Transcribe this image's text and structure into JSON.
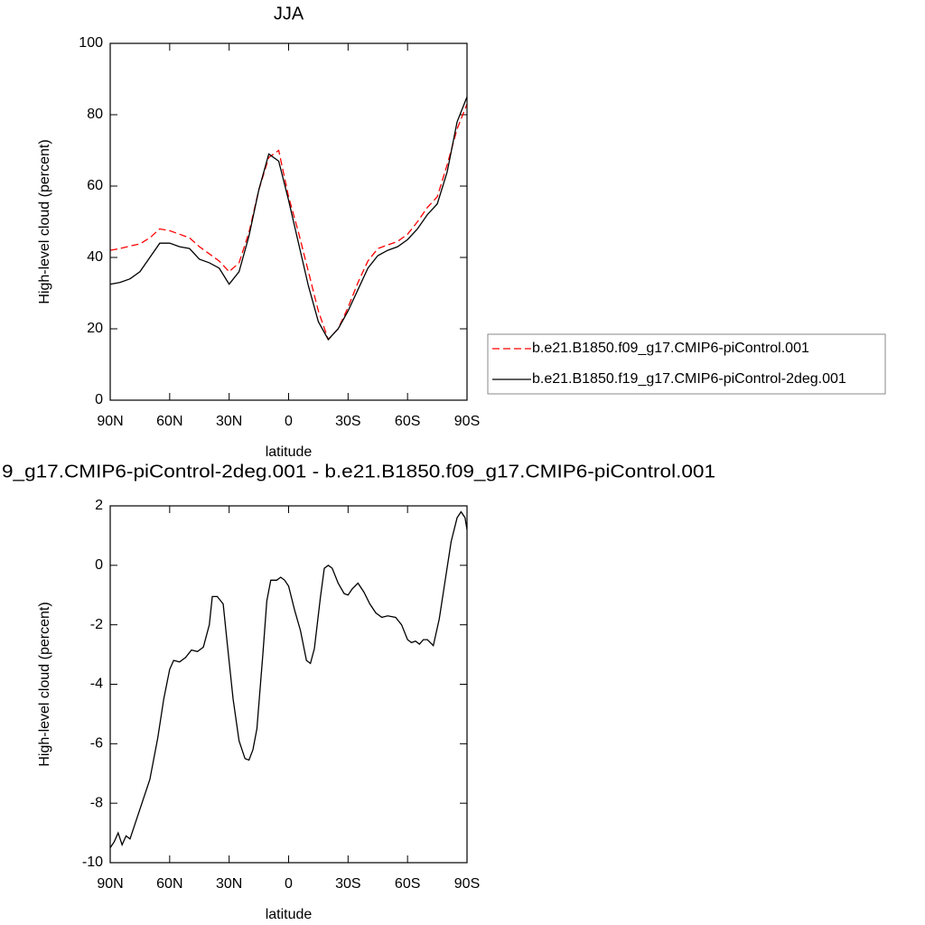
{
  "chart_data": [
    {
      "type": "line",
      "title": "JJA",
      "xlabel": "latitude",
      "ylabel": "High-level cloud (percent)",
      "xlim": [
        90,
        -90
      ],
      "xticks": [
        {
          "value": 90,
          "label": "90N"
        },
        {
          "value": 60,
          "label": "60N"
        },
        {
          "value": 30,
          "label": "30N"
        },
        0,
        {
          "value": -30,
          "label": "30S"
        },
        {
          "value": -60,
          "label": "60S"
        },
        {
          "value": -90,
          "label": "90S"
        }
      ],
      "ylim": [
        0,
        100
      ],
      "yticks": [
        0,
        20,
        40,
        60,
        80,
        100
      ],
      "legend": "right",
      "x": [
        90,
        85,
        80,
        75,
        70,
        65,
        60,
        55,
        50,
        45,
        40,
        35,
        30,
        25,
        20,
        15,
        10,
        5,
        0,
        -5,
        -10,
        -15,
        -20,
        -25,
        -30,
        -35,
        -40,
        -45,
        -50,
        -55,
        -60,
        -65,
        -70,
        -75,
        -80,
        -85,
        -90
      ],
      "series": [
        {
          "name": "b.e21.B1850.f09_g17.CMIP6-piControl.001",
          "color": "#ff0000",
          "line_style": "dashed",
          "values": [
            42,
            42.5,
            43.2,
            43.8,
            45.5,
            48,
            47.5,
            46.5,
            45.5,
            43,
            41,
            39,
            36,
            38.5,
            47,
            59,
            68,
            70,
            57,
            47,
            36,
            25,
            17,
            20,
            26,
            33,
            39,
            42.5,
            43.5,
            44.5,
            46.5,
            50,
            54,
            57,
            66,
            76,
            83
          ]
        },
        {
          "name": "b.e21.B1850.f19_g17.CMIP6-piControl-2deg.001",
          "color": "#000000",
          "line_style": "solid",
          "values": [
            32.5,
            33,
            34,
            36,
            40,
            44,
            44,
            43,
            42.5,
            39.5,
            38.5,
            37,
            32.5,
            36,
            46,
            59,
            69,
            67,
            56,
            44,
            32,
            22,
            17,
            20,
            25,
            31,
            37,
            40.5,
            42,
            43,
            45,
            48,
            52,
            55,
            64,
            78,
            85
          ]
        }
      ]
    },
    {
      "type": "line",
      "title": "9_g17.CMIP6-piControl-2deg.001 - b.e21.B1850.f09_g17.CMIP6-piControl.001",
      "xlabel": "latitude",
      "ylabel": "High-level cloud (percent)",
      "xlim": [
        90,
        -90
      ],
      "xticks": [
        {
          "value": 90,
          "label": "90N"
        },
        {
          "value": 60,
          "label": "60N"
        },
        {
          "value": 30,
          "label": "30N"
        },
        0,
        {
          "value": -30,
          "label": "30S"
        },
        {
          "value": -60,
          "label": "60S"
        },
        {
          "value": -90,
          "label": "90S"
        }
      ],
      "ylim": [
        -10,
        2
      ],
      "yticks": [
        -10,
        -8,
        -6,
        -4,
        -2,
        0,
        2
      ],
      "x": [
        90,
        88,
        86,
        84,
        82,
        80,
        77,
        74,
        70,
        66,
        63,
        60,
        58,
        55,
        52,
        49,
        46,
        43,
        40,
        38.5,
        36,
        33,
        31,
        28,
        25,
        22,
        20,
        18,
        16,
        13,
        11,
        9,
        6,
        4,
        2,
        0,
        -3,
        -6,
        -9,
        -11,
        -13,
        -16,
        -18,
        -20,
        -22,
        -25,
        -28,
        -30,
        -32,
        -35,
        -38,
        -41,
        -44,
        -47,
        -50,
        -54,
        -57,
        -60,
        -62,
        -64,
        -66,
        -68,
        -70,
        -73,
        -76,
        -79,
        -82,
        -85,
        -87,
        -89,
        -90
      ],
      "series": [
        {
          "color": "#000000",
          "line_style": "solid",
          "values": [
            -9.5,
            -9.3,
            -9.0,
            -9.4,
            -9.1,
            -9.2,
            -8.6,
            -8.0,
            -7.2,
            -5.8,
            -4.5,
            -3.5,
            -3.2,
            -3.25,
            -3.1,
            -2.85,
            -2.9,
            -2.75,
            -2.0,
            -1.05,
            -1.05,
            -1.3,
            -2.6,
            -4.5,
            -5.9,
            -6.5,
            -6.55,
            -6.2,
            -5.5,
            -3.0,
            -1.2,
            -0.5,
            -0.5,
            -0.4,
            -0.5,
            -0.7,
            -1.5,
            -2.2,
            -3.2,
            -3.3,
            -2.8,
            -1.1,
            -0.1,
            0.0,
            -0.1,
            -0.6,
            -0.95,
            -1.0,
            -0.8,
            -0.6,
            -0.9,
            -1.3,
            -1.6,
            -1.75,
            -1.7,
            -1.75,
            -2.0,
            -2.5,
            -2.6,
            -2.55,
            -2.65,
            -2.5,
            -2.5,
            -2.7,
            -1.8,
            -0.5,
            0.8,
            1.6,
            1.8,
            1.6,
            1.2
          ]
        }
      ]
    }
  ]
}
